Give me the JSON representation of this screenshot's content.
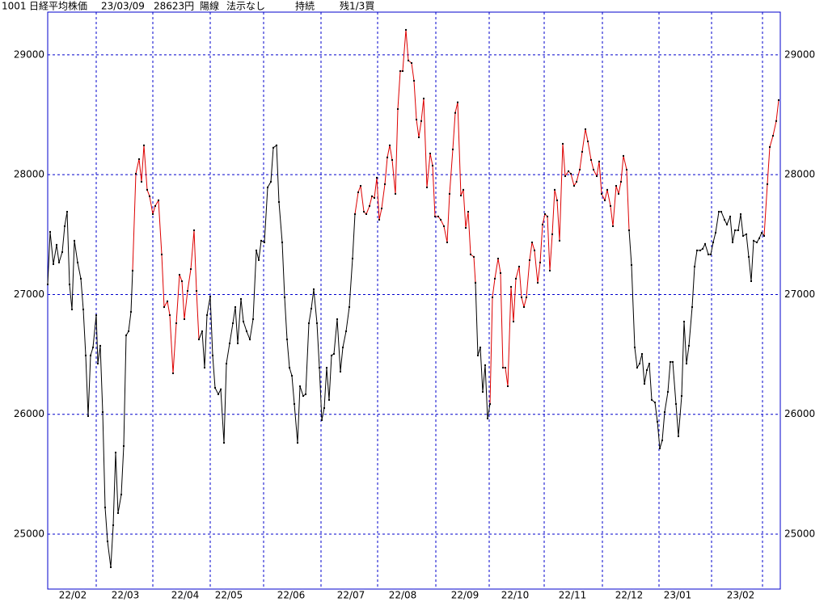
{
  "chart_data": {
    "type": "line",
    "header": [
      "1001",
      "日経平均株価",
      "23/03/09",
      "28623円",
      "陽線",
      "法示なし",
      "持続",
      "残1/3買"
    ],
    "xlim": [
      0,
      271.8
    ],
    "ylim": [
      24541,
      29357
    ],
    "yticks": [
      25000,
      26000,
      27000,
      28000,
      29000
    ],
    "xticks": [
      {
        "value": 9.3,
        "label": "22/02"
      },
      {
        "value": 28.8,
        "label": "22/03"
      },
      {
        "value": 51,
        "label": "22/04"
      },
      {
        "value": 67.2,
        "label": "22/05"
      },
      {
        "value": 90.3,
        "label": "22/06"
      },
      {
        "value": 112.5,
        "label": "22/07"
      },
      {
        "value": 131.7,
        "label": "22/08"
      },
      {
        "value": 154.8,
        "label": "22/09"
      },
      {
        "value": 173.4,
        "label": "22/10"
      },
      {
        "value": 194.7,
        "label": "22/11"
      },
      {
        "value": 215.7,
        "label": "22/12"
      },
      {
        "value": 233.7,
        "label": "23/01"
      },
      {
        "value": 257.1,
        "label": "23/02"
      }
    ],
    "xgrid": [
      18,
      39,
      60.3,
      80.1,
      101.4,
      122.4,
      144,
      163.8,
      184.2,
      205.8,
      226.8,
      246.3,
      265.2
    ],
    "grid": true,
    "grid_color": "#0000cc",
    "marker_color": "#000000",
    "series": [
      {
        "color": "#000000",
        "x": [
          0,
          0.9,
          2.1,
          3.3,
          4.2,
          5.4,
          6.3,
          7.2,
          8.1,
          9,
          9.9,
          11.1,
          12.3,
          13.2,
          14.1,
          15,
          15.9,
          16.8,
          18,
          18.6,
          19.5,
          20.4,
          21.3,
          22.2,
          23.4,
          24.3,
          25.2,
          26.1,
          27.3,
          28.2,
          29.1,
          30,
          30.9,
          31.5
        ],
        "values": [
          27084,
          27523,
          27253,
          27415,
          27267,
          27354,
          27570,
          27691,
          27084,
          26875,
          27449,
          27267,
          27132,
          26875,
          26491,
          25985,
          26491,
          26558,
          26828,
          26423,
          26572,
          26018,
          25222,
          24939,
          24723,
          25074,
          25681,
          25175,
          25330,
          25735,
          26659,
          26693,
          26855,
          27199
        ]
      },
      {
        "color": "#dd0000",
        "x": [
          31.5,
          32.7,
          33.9,
          34.8,
          35.7,
          36.9,
          37.8,
          39,
          39.9,
          41.1,
          42.3,
          43.2,
          44.4,
          45.3,
          46.5,
          47.7,
          48.9,
          49.8,
          50.7,
          51.9,
          53.1,
          54.3,
          55.2,
          56.1
        ],
        "values": [
          27199,
          28008,
          28130,
          27941,
          28245,
          27874,
          27820,
          27671,
          27739,
          27786,
          27334,
          26895,
          26943,
          26828,
          26342,
          26760,
          27165,
          27111,
          26794,
          27030,
          27212,
          27536,
          27030,
          26625
        ]
      },
      {
        "color": "#000000",
        "x": [
          56.1,
          57.3,
          58.2,
          59.1,
          60.3,
          61.2,
          62.1,
          63.3,
          64.2,
          65.4,
          66.3,
          67.5,
          68.7,
          69.6,
          70.5,
          71.7,
          72.6,
          73.8,
          75,
          76.2,
          77.4,
          78.3,
          79.2,
          80.4,
          81.6,
          82.8,
          83.7,
          84.9,
          85.8,
          87,
          87.9,
          88.8,
          89.7,
          90.6,
          91.5,
          92.7,
          93.6,
          94.8,
          95.7,
          96.9,
          97.8,
          98.7,
          99.9,
          100.8,
          101.7,
          102.6,
          103.5,
          104.4,
          105.3,
          106.2,
          107.4,
          108.6,
          109.5,
          110.7,
          111.9,
          113.1,
          114
        ],
        "values": [
          26625,
          26693,
          26389,
          26828,
          26983,
          26491,
          26221,
          26167,
          26208,
          25762,
          26423,
          26592,
          26760,
          26895,
          26592,
          26963,
          26774,
          26693,
          26625,
          26794,
          27368,
          27287,
          27449,
          27435,
          27894,
          27941,
          28225,
          28245,
          27772,
          27435,
          26976,
          26625,
          26389,
          26322,
          26086,
          25762,
          26234,
          26153,
          26167,
          26760,
          26882,
          27044,
          26760,
          26389,
          25951,
          26052,
          26389,
          26120,
          26491,
          26504,
          26794,
          26356,
          26558,
          26693,
          26895,
          27300,
          27671
        ]
      },
      {
        "color": "#dd0000",
        "x": [
          114,
          115.2,
          116.1,
          117.3,
          118.2,
          119.4,
          120.3,
          121.2,
          122.1,
          123,
          123.9,
          125.1,
          126,
          126.9,
          127.8,
          129,
          129.9,
          130.8,
          131.7,
          132.9,
          133.8,
          135,
          135.9,
          136.8,
          137.7,
          138.6,
          139.5,
          140.7,
          141.9,
          142.8,
          143.7,
          144.9,
          145.8,
          147,
          148.2,
          149.1,
          150.3,
          151.2,
          152.1,
          153.3,
          154.2,
          155.1,
          156,
          156.9,
          158.1,
          158.7
        ],
        "values": [
          27671,
          27853,
          27907,
          27691,
          27671,
          27739,
          27820,
          27806,
          27975,
          27624,
          27718,
          27921,
          28144,
          28245,
          28123,
          27840,
          28548,
          28865,
          28865,
          29209,
          28953,
          28932,
          28784,
          28460,
          28312,
          28448,
          28636,
          27894,
          28177,
          28076,
          27651,
          27651,
          27624,
          27570,
          27435,
          27840,
          28211,
          28516,
          28604,
          27826,
          27874,
          27556,
          27691,
          27334,
          27314,
          27098
        ]
      },
      {
        "color": "#000000",
        "x": [
          158.7,
          159.6,
          160.5,
          161.4,
          162.3,
          163.2,
          164.1
        ],
        "values": [
          27098,
          26491,
          26558,
          26187,
          26410,
          25965,
          26086
        ]
      },
      {
        "color": "#dd0000",
        "x": [
          164.1,
          165,
          165.9,
          167.1,
          168,
          168.9,
          169.8,
          170.7,
          171.9,
          172.8,
          173.7,
          174.9,
          175.8,
          176.7,
          177.6,
          178.8,
          179.7,
          180.6,
          181.8,
          182.7,
          183.6,
          184.5,
          185.4,
          186.3,
          187.2,
          188.1,
          189,
          189.9,
          191.1,
          192,
          193.2,
          194.1,
          195.3,
          196.2,
          197.4,
          198.3,
          199.5,
          200.4,
          201.6,
          202.5,
          203.7,
          204.6,
          205.5,
          206.7,
          207.6,
          208.8,
          209.7,
          210.9,
          211.8,
          212.7,
          213.6,
          214.8,
          215.7
        ],
        "values": [
          26086,
          26976,
          27132,
          27300,
          27179,
          26389,
          26389,
          26234,
          27064,
          26774,
          27132,
          27233,
          26976,
          26895,
          26976,
          27287,
          27435,
          27368,
          27098,
          27267,
          27584,
          27671,
          27651,
          27199,
          27503,
          27874,
          27786,
          27449,
          28258,
          27988,
          28029,
          28008,
          27907,
          27941,
          28042,
          28191,
          28380,
          28278,
          28123,
          28042,
          27988,
          28110,
          27840,
          27786,
          27874,
          27739,
          27570,
          27907,
          27840,
          27941,
          28157,
          28042,
          27536
        ]
      },
      {
        "color": "#000000",
        "x": [
          215.7,
          216.6,
          217.8,
          218.7,
          219.6,
          220.5,
          221.4,
          222.3,
          223.2,
          224.1,
          225.3,
          226.2,
          227.1,
          228,
          228.9,
          230.1,
          231,
          231.9,
          233.1,
          234,
          235.2,
          236.1,
          237,
          237.9,
          239.1,
          240,
          240.9,
          242.1,
          243,
          243.9,
          245.1,
          246,
          246.9,
          247.8,
          249,
          249.9,
          251.1,
          252,
          253.2,
          254.1,
          255,
          256.2,
          257.1,
          258,
          259.2,
          260.1,
          261,
          261.9,
          263.1,
          264,
          264.9,
          265.8
        ],
        "values": [
          27536,
          27246,
          26558,
          26389,
          26423,
          26504,
          26254,
          26369,
          26423,
          26120,
          26099,
          25938,
          25715,
          25782,
          26018,
          26187,
          26437,
          26437,
          26086,
          25816,
          26153,
          26774,
          26423,
          26572,
          26895,
          27233,
          27368,
          27368,
          27381,
          27422,
          27334,
          27334,
          27435,
          27516,
          27691,
          27691,
          27624,
          27584,
          27651,
          27435,
          27536,
          27536,
          27671,
          27489,
          27503,
          27314,
          27111,
          27449,
          27435,
          27469,
          27516,
          27489
        ]
      },
      {
        "color": "#dd0000",
        "x": [
          265.8,
          267,
          267.9,
          269.1,
          270.3,
          271.2
        ],
        "values": [
          27489,
          27921,
          28231,
          28325,
          28448,
          28623
        ]
      }
    ]
  }
}
